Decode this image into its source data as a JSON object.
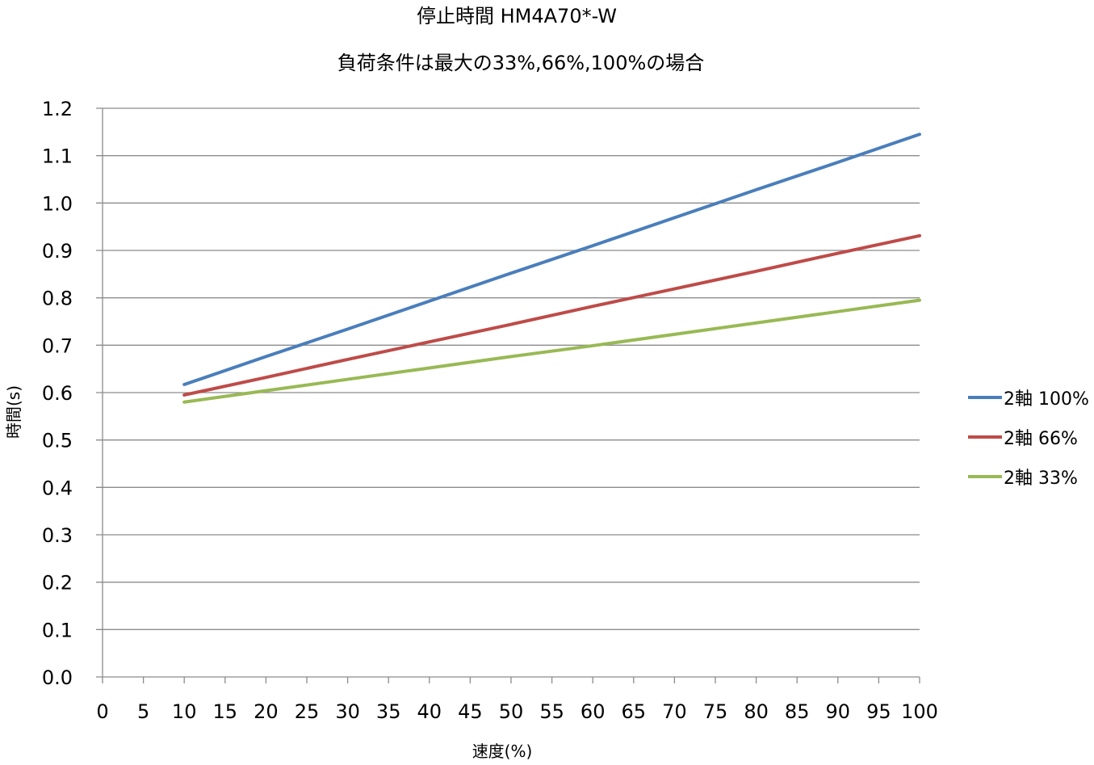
{
  "chart_data": {
    "type": "line",
    "title": "停止時間 HM4A70*-W",
    "subtitle": "負荷条件は最大の33%,66%,100%の場合",
    "xlabel": "速度(%)",
    "ylabel": "時間(s)",
    "xlim": [
      0,
      100
    ],
    "ylim": [
      0,
      1.2
    ],
    "x_ticks": [
      "0",
      "5",
      "10",
      "15",
      "20",
      "25",
      "30",
      "35",
      "40",
      "45",
      "50",
      "55",
      "60",
      "65",
      "70",
      "75",
      "80",
      "85",
      "90",
      "95",
      "100"
    ],
    "y_ticks": [
      "0.0",
      "0.1",
      "0.2",
      "0.3",
      "0.4",
      "0.5",
      "0.6",
      "0.7",
      "0.8",
      "0.9",
      "1.0",
      "1.1",
      "1.2"
    ],
    "grid": true,
    "legend_position": "right",
    "x": [
      10,
      20,
      30,
      40,
      50,
      60,
      70,
      80,
      90,
      100
    ],
    "series": [
      {
        "name": "2軸 100%",
        "color": "#4a7ebb",
        "values": [
          0.617,
          0.676,
          0.734,
          0.793,
          0.852,
          0.91,
          0.969,
          1.028,
          1.086,
          1.145
        ]
      },
      {
        "name": "2軸 66%",
        "color": "#be4b48",
        "values": [
          0.595,
          0.632,
          0.67,
          0.707,
          0.744,
          0.782,
          0.819,
          0.856,
          0.894,
          0.931
        ]
      },
      {
        "name": "2軸 33%",
        "color": "#98b954",
        "values": [
          0.58,
          0.604,
          0.628,
          0.652,
          0.676,
          0.699,
          0.723,
          0.747,
          0.771,
          0.795
        ]
      }
    ]
  }
}
